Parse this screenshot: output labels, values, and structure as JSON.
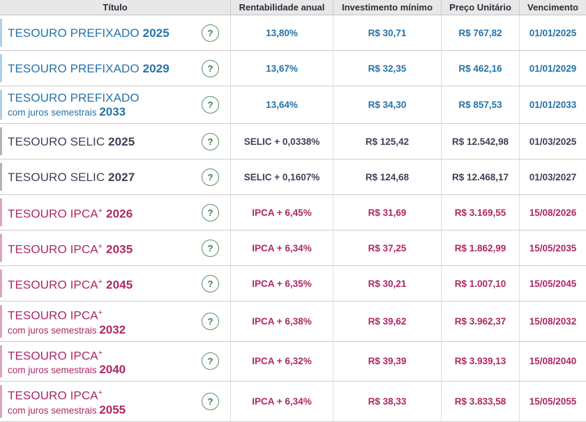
{
  "table": {
    "columns": [
      {
        "label": "Título"
      },
      {
        "label": "Rentabilidade anual"
      },
      {
        "label": "Investimento mínimo"
      },
      {
        "label": "Preço Unitário"
      },
      {
        "label": "Vencimento"
      }
    ],
    "rows": [
      {
        "theme": "blue",
        "title": "TESOURO PREFIXADO",
        "sup": "",
        "subtitle": "",
        "year": "2025",
        "rate": "13,80%",
        "min_investment": "R$ 30,71",
        "unit_price": "R$ 767,82",
        "maturity": "01/01/2025",
        "help_label": "?"
      },
      {
        "theme": "blue",
        "title": "TESOURO PREFIXADO",
        "sup": "",
        "subtitle": "",
        "year": "2029",
        "rate": "13,67%",
        "min_investment": "R$ 32,35",
        "unit_price": "R$ 462,16",
        "maturity": "01/01/2029",
        "help_label": "?"
      },
      {
        "theme": "blue",
        "title": "TESOURO PREFIXADO",
        "sup": "",
        "subtitle": "com juros semestrais",
        "year": "2033",
        "rate": "13,64%",
        "min_investment": "R$ 34,30",
        "unit_price": "R$ 857,53",
        "maturity": "01/01/2033",
        "help_label": "?"
      },
      {
        "theme": "dark",
        "title": "TESOURO SELIC",
        "sup": "",
        "subtitle": "",
        "year": "2025",
        "rate": "SELIC + 0,0338%",
        "min_investment": "R$ 125,42",
        "unit_price": "R$ 12.542,98",
        "maturity": "01/03/2025",
        "help_label": "?"
      },
      {
        "theme": "dark",
        "title": "TESOURO SELIC",
        "sup": "",
        "subtitle": "",
        "year": "2027",
        "rate": "SELIC + 0,1607%",
        "min_investment": "R$ 124,68",
        "unit_price": "R$ 12.468,17",
        "maturity": "01/03/2027",
        "help_label": "?"
      },
      {
        "theme": "pink",
        "title": "TESOURO IPCA",
        "sup": "+",
        "subtitle": "",
        "year": "2026",
        "rate": "IPCA + 6,45%",
        "min_investment": "R$ 31,69",
        "unit_price": "R$ 3.169,55",
        "maturity": "15/08/2026",
        "help_label": "?"
      },
      {
        "theme": "pink",
        "title": "TESOURO IPCA",
        "sup": "+",
        "subtitle": "",
        "year": "2035",
        "rate": "IPCA + 6,34%",
        "min_investment": "R$ 37,25",
        "unit_price": "R$ 1.862,99",
        "maturity": "15/05/2035",
        "help_label": "?"
      },
      {
        "theme": "pink",
        "title": "TESOURO IPCA",
        "sup": "+",
        "subtitle": "",
        "year": "2045",
        "rate": "IPCA + 6,35%",
        "min_investment": "R$ 30,21",
        "unit_price": "R$ 1.007,10",
        "maturity": "15/05/2045",
        "help_label": "?"
      },
      {
        "theme": "pink",
        "title": "TESOURO IPCA",
        "sup": "+",
        "subtitle": "com juros semestrais",
        "year": "2032",
        "rate": "IPCA + 6,38%",
        "min_investment": "R$ 39,62",
        "unit_price": "R$ 3.962,37",
        "maturity": "15/08/2032",
        "help_label": "?"
      },
      {
        "theme": "pink",
        "title": "TESOURO IPCA",
        "sup": "+",
        "subtitle": "com juros semestrais",
        "year": "2040",
        "rate": "IPCA + 6,32%",
        "min_investment": "R$ 39,39",
        "unit_price": "R$ 3.939,13",
        "maturity": "15/08/2040",
        "help_label": "?"
      },
      {
        "theme": "pink",
        "title": "TESOURO IPCA",
        "sup": "+",
        "subtitle": "com juros semestrais",
        "year": "2055",
        "rate": "IPCA + 6,34%",
        "min_investment": "R$ 38,33",
        "unit_price": "R$ 3.833,58",
        "maturity": "15/05/2055",
        "help_label": "?"
      }
    ]
  },
  "colors": {
    "prefixado_text": "#2573a7",
    "selic_text": "#413e59",
    "ipca_text": "#ae2763",
    "prefixado_accent": "#aed0e2",
    "selic_accent": "#b3b3b3",
    "ipca_accent": "#dca4c2",
    "header_bg": "#e8e8e8",
    "help_icon_green": "#3e7b44"
  },
  "icons": {
    "help_glyph": "?"
  }
}
